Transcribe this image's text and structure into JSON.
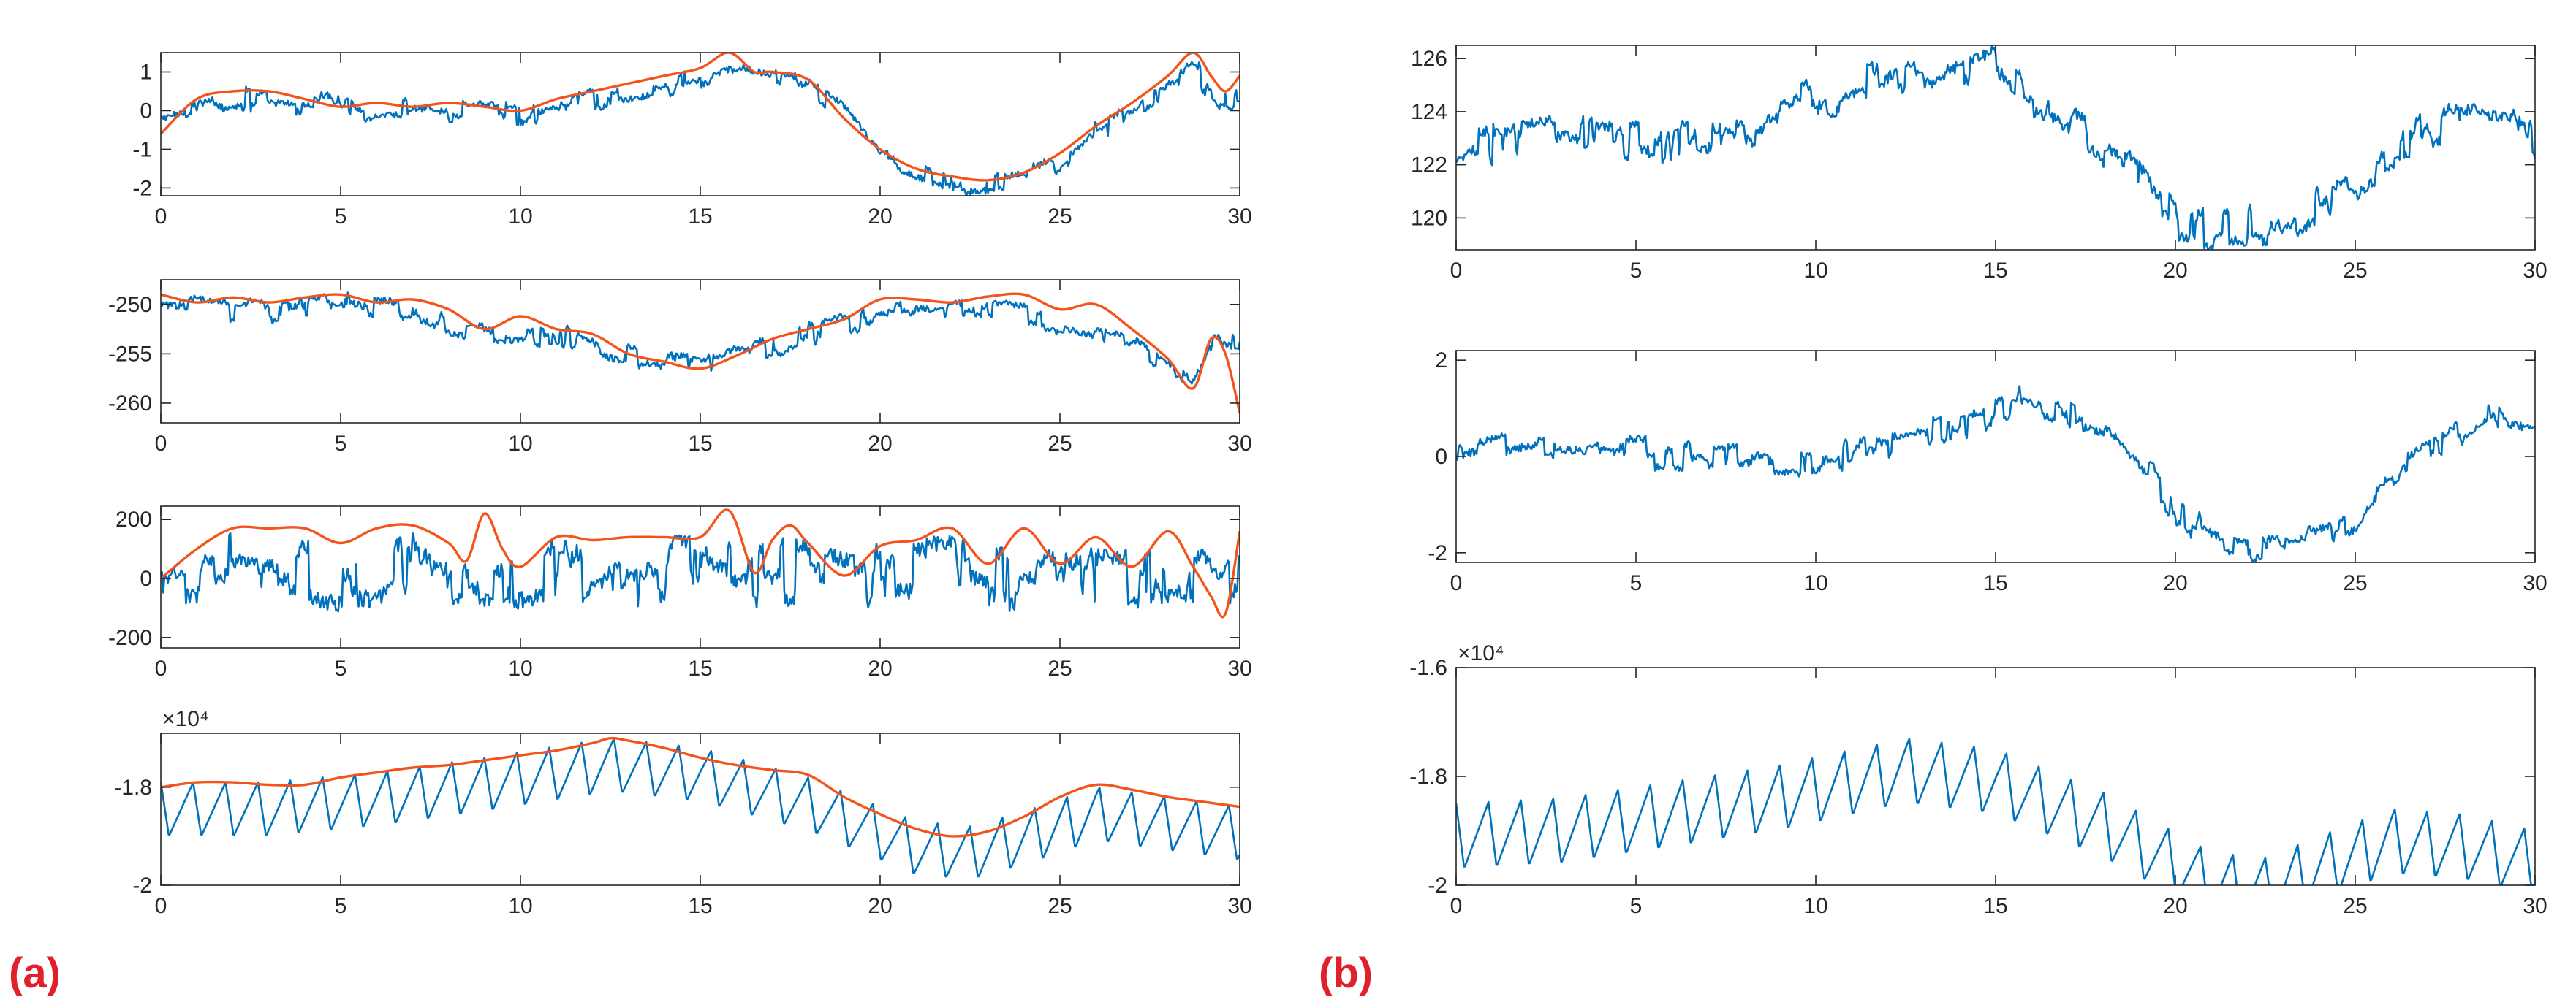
{
  "figure": {
    "panel_labels": {
      "a": "(a)",
      "b": "(b)"
    }
  },
  "colors": {
    "signal": "#0072BD",
    "envelope": "#F2541B",
    "axis": "#262626",
    "label": "#E0202A"
  },
  "chart_data": [
    {
      "panel": "(a)",
      "type": "line",
      "xlim": [
        0,
        30
      ],
      "ylim": [
        -2.2,
        1.5
      ],
      "xticks": [
        0,
        5,
        10,
        15,
        20,
        25,
        30
      ],
      "yticks": [
        -2,
        -1,
        0,
        1
      ],
      "ytick_labels": [
        "-2",
        "-1",
        "0",
        "1"
      ],
      "exponent_label": "",
      "series": [
        {
          "name": "signal",
          "color": "#0072BD",
          "kind": "noisy",
          "x": [
            0,
            2,
            4,
            6,
            8,
            10,
            12,
            14,
            15,
            15.8,
            17,
            18,
            19,
            20,
            21,
            22,
            23,
            24,
            25,
            26,
            27,
            28,
            28.7,
            29.3,
            30
          ],
          "y": [
            -0.2,
            0.3,
            0.2,
            0.05,
            0.0,
            -0.1,
            0.3,
            0.6,
            0.9,
            1.2,
            0.8,
            0.7,
            0.0,
            -1.2,
            -1.6,
            -1.9,
            -1.9,
            -1.7,
            -1.3,
            -0.5,
            0.0,
            0.6,
            1.1,
            0.4,
            0.3
          ],
          "noise": 0.28
        },
        {
          "name": "envelope",
          "color": "#F2541B",
          "kind": "smooth",
          "x": [
            0,
            1,
            2,
            3,
            4,
            5,
            6,
            7,
            8,
            9,
            10,
            11,
            12,
            13,
            14,
            15,
            15.8,
            16.5,
            17,
            18,
            19,
            20,
            21,
            22,
            23,
            24,
            25,
            26,
            27,
            28,
            28.7,
            29.2,
            29.6,
            30
          ],
          "y": [
            -0.6,
            0.3,
            0.5,
            0.5,
            0.3,
            0.1,
            0.2,
            0.1,
            0.2,
            0.1,
            0.0,
            0.3,
            0.5,
            0.7,
            0.9,
            1.1,
            1.5,
            1.0,
            1.0,
            0.8,
            -0.2,
            -1.0,
            -1.5,
            -1.7,
            -1.8,
            -1.6,
            -1.1,
            -0.4,
            0.2,
            0.9,
            1.5,
            0.9,
            0.5,
            0.9
          ]
        }
      ]
    },
    {
      "panel": "(a)",
      "type": "line",
      "xlim": [
        0,
        30
      ],
      "ylim": [
        -262,
        -247.5
      ],
      "xticks": [
        0,
        5,
        10,
        15,
        20,
        25,
        30
      ],
      "yticks": [
        -260,
        -255,
        -250
      ],
      "ytick_labels": [
        "-260",
        "-255",
        "-250"
      ],
      "exponent_label": "",
      "series": [
        {
          "name": "signal",
          "color": "#0072BD",
          "kind": "noisy",
          "x": [
            0,
            2,
            4,
            5,
            7,
            8,
            9,
            10,
            11,
            12,
            13,
            14,
            15,
            16,
            17,
            18,
            19,
            20,
            21,
            22,
            23,
            24,
            25,
            26,
            27,
            28,
            28.7,
            29.3,
            30
          ],
          "y": [
            -250,
            -250.8,
            -250.5,
            -250,
            -250.5,
            -252,
            -253,
            -253.5,
            -253,
            -254,
            -255,
            -256,
            -256.5,
            -255,
            -254.5,
            -253,
            -252,
            -251,
            -250.5,
            -250.5,
            -250.2,
            -250.5,
            -252,
            -253,
            -254,
            -256,
            -258,
            -253.5,
            -254.5
          ],
          "noise": 1.1
        },
        {
          "name": "envelope",
          "color": "#F2541B",
          "kind": "smooth",
          "x": [
            0,
            1,
            2,
            3,
            4,
            5,
            6,
            7,
            8,
            9,
            10,
            11,
            12,
            13,
            14,
            15,
            16,
            17,
            18,
            19,
            20,
            21,
            22,
            23,
            24,
            25,
            26,
            27,
            28,
            28.7,
            29.2,
            29.6,
            30
          ],
          "y": [
            -249,
            -249.8,
            -249.3,
            -249.8,
            -249.3,
            -249,
            -249.8,
            -249.5,
            -250.5,
            -252.5,
            -251.2,
            -252.5,
            -253,
            -255,
            -255.8,
            -256.5,
            -255.2,
            -253.5,
            -252.5,
            -251.5,
            -249.5,
            -249.5,
            -249.8,
            -249.2,
            -249,
            -250.5,
            -250,
            -252.5,
            -255.5,
            -258.5,
            -253.5,
            -255,
            -261
          ]
        }
      ]
    },
    {
      "panel": "(a)",
      "type": "line",
      "xlim": [
        0,
        30
      ],
      "ylim": [
        -235,
        245
      ],
      "xticks": [
        0,
        5,
        10,
        15,
        20,
        25,
        30
      ],
      "yticks": [
        -200,
        0,
        200
      ],
      "ytick_labels": [
        "-200",
        "0",
        "200"
      ],
      "exponent_label": "",
      "series": [
        {
          "name": "signal",
          "color": "#0072BD",
          "kind": "noisy",
          "x": [
            0,
            1,
            2,
            3,
            4,
            5,
            6,
            7,
            8,
            9,
            10,
            11,
            12,
            13,
            14,
            15,
            16,
            17,
            18,
            19,
            20,
            21,
            22,
            23,
            24,
            25,
            26,
            27,
            28,
            29,
            29.5,
            30
          ],
          "y": [
            0,
            20,
            40,
            10,
            30,
            0,
            20,
            40,
            -20,
            10,
            0,
            30,
            10,
            20,
            30,
            40,
            10,
            20,
            20,
            0,
            10,
            20,
            30,
            10,
            0,
            20,
            10,
            10,
            -10,
            10,
            -60,
            10
          ],
          "noise": 95
        },
        {
          "name": "envelope",
          "color": "#F2541B",
          "kind": "smooth",
          "x": [
            0,
            1,
            2,
            3,
            4,
            5,
            6,
            7,
            8,
            8.5,
            9,
            9.5,
            10,
            11,
            12,
            13,
            14,
            15,
            15.8,
            16.5,
            17,
            17.5,
            18,
            19,
            20,
            21,
            22,
            23,
            24,
            25,
            26,
            27,
            28,
            28.7,
            29.2,
            29.6,
            30
          ],
          "y": [
            0,
            100,
            170,
            170,
            170,
            120,
            170,
            180,
            120,
            60,
            220,
            100,
            40,
            140,
            130,
            140,
            140,
            140,
            230,
            20,
            130,
            180,
            120,
            10,
            110,
            130,
            170,
            50,
            170,
            50,
            140,
            40,
            160,
            40,
            -60,
            -120,
            160
          ]
        }
      ]
    },
    {
      "panel": "(a)",
      "type": "line",
      "xlim": [
        0,
        30
      ],
      "ylim": [
        -20000,
        -16900
      ],
      "xticks": [
        0,
        5,
        10,
        15,
        20,
        25,
        30
      ],
      "yticks": [
        -20000,
        -18000
      ],
      "ytick_labels": [
        "-2",
        "-1.8"
      ],
      "exponent_label": "×10⁴",
      "series": [
        {
          "name": "signal",
          "color": "#0072BD",
          "kind": "sawtooth",
          "x": [
            0,
            3,
            6,
            9,
            12.5,
            15,
            18,
            21,
            22.5,
            24,
            26,
            28,
            30
          ],
          "y": [
            -17900,
            -17900,
            -17700,
            -17400,
            -17000,
            -17200,
            -17800,
            -18700,
            -18800,
            -18500,
            -18000,
            -18200,
            -18400
          ],
          "amplitude": 1100,
          "period": 0.9
        },
        {
          "name": "envelope",
          "color": "#F2541B",
          "kind": "smooth",
          "x": [
            0,
            1,
            2,
            3,
            4,
            5,
            6,
            7,
            8,
            9,
            10,
            11,
            12,
            12.5,
            13,
            14,
            15,
            16,
            17,
            18,
            19,
            20,
            21,
            22,
            23,
            24,
            25,
            26,
            27,
            28,
            29,
            30
          ],
          "y": [
            -18000,
            -17900,
            -17900,
            -17950,
            -17950,
            -17800,
            -17700,
            -17600,
            -17550,
            -17450,
            -17350,
            -17250,
            -17100,
            -17000,
            -17050,
            -17200,
            -17400,
            -17550,
            -17650,
            -17750,
            -18200,
            -18550,
            -18850,
            -19000,
            -18900,
            -18600,
            -18200,
            -17950,
            -18050,
            -18200,
            -18300,
            -18400
          ]
        }
      ]
    },
    {
      "panel": "(b)",
      "type": "line",
      "xlim": [
        0,
        30
      ],
      "ylim": [
        118.8,
        126.5
      ],
      "xticks": [
        0,
        5,
        10,
        15,
        20,
        25,
        30
      ],
      "yticks": [
        120,
        122,
        124,
        126
      ],
      "ytick_labels": [
        "120",
        "122",
        "124",
        "126"
      ],
      "exponent_label": "",
      "series": [
        {
          "name": "signal",
          "color": "#0072BD",
          "kind": "noisy",
          "x": [
            0,
            2,
            3,
            4,
            5,
            6,
            7,
            8,
            9,
            10,
            11,
            12,
            13,
            14,
            15,
            16,
            17,
            18,
            19,
            20,
            21,
            22,
            23,
            24,
            25,
            26,
            27,
            28,
            29,
            30
          ],
          "y": [
            122.3,
            123.2,
            123.4,
            123.2,
            123.0,
            122.8,
            123.0,
            123.3,
            124.0,
            124.5,
            124.8,
            125.2,
            125.5,
            125.8,
            126.1,
            124.5,
            123.5,
            122.5,
            121.5,
            120.0,
            119.6,
            119.6,
            119.8,
            120.5,
            121.5,
            122.5,
            123.4,
            123.8,
            123.6,
            123.0
          ],
          "noise": 0.7
        }
      ]
    },
    {
      "panel": "(b)",
      "type": "line",
      "xlim": [
        0,
        30
      ],
      "ylim": [
        -2.2,
        2.2
      ],
      "xticks": [
        0,
        5,
        10,
        15,
        20,
        25,
        30
      ],
      "yticks": [
        -2,
        0,
        2
      ],
      "ytick_labels": [
        "-2",
        "0",
        "2"
      ],
      "exponent_label": "",
      "series": [
        {
          "name": "signal",
          "color": "#0072BD",
          "kind": "noisy",
          "x": [
            0,
            2,
            4,
            6,
            8,
            10,
            12,
            14,
            15,
            15.8,
            17,
            18,
            19,
            20,
            21,
            22,
            23,
            24,
            25,
            26,
            27,
            28,
            28.7,
            29.3,
            30
          ],
          "y": [
            -0.1,
            0.3,
            0.2,
            0.0,
            0.0,
            -0.1,
            0.3,
            0.6,
            0.9,
            1.2,
            0.8,
            0.7,
            0.0,
            -1.2,
            -1.6,
            -1.9,
            -1.9,
            -1.7,
            -1.3,
            -0.5,
            0.0,
            0.6,
            1.1,
            0.4,
            0.4
          ],
          "noise": 0.28
        }
      ]
    },
    {
      "panel": "(b)",
      "type": "line",
      "xlim": [
        0,
        30
      ],
      "ylim": [
        -20000,
        -16000
      ],
      "xticks": [
        0,
        5,
        10,
        15,
        20,
        25,
        30
      ],
      "yticks": [
        -20000,
        -18000,
        -16000
      ],
      "ytick_labels": [
        "-2",
        "-1.8",
        "-1.6"
      ],
      "exponent_label": "×10⁴",
      "series": [
        {
          "name": "signal",
          "color": "#0072BD",
          "kind": "sawtooth",
          "x": [
            0,
            3,
            6,
            9,
            12.5,
            15,
            18,
            21,
            22.5,
            24,
            26,
            28,
            30
          ],
          "y": [
            -18500,
            -18400,
            -18100,
            -17800,
            -17300,
            -17500,
            -18300,
            -19400,
            -19500,
            -19100,
            -18600,
            -18700,
            -19000
          ],
          "amplitude": 1200,
          "period": 0.9
        }
      ]
    }
  ]
}
